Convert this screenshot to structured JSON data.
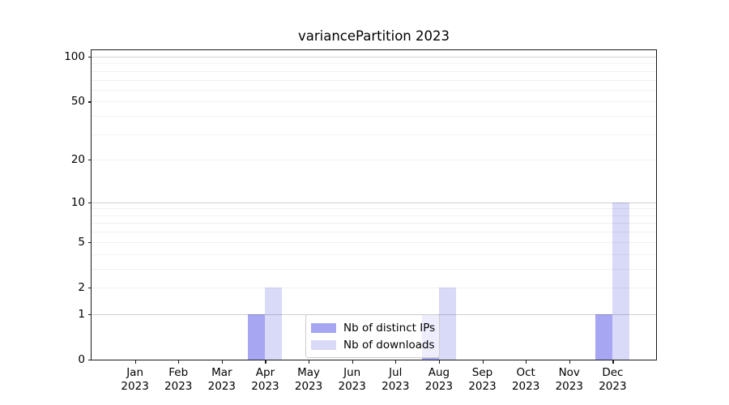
{
  "chart_data": {
    "type": "bar",
    "title": "variancePartition 2023",
    "year_label": "2023",
    "categories": [
      "Jan",
      "Feb",
      "Mar",
      "Apr",
      "May",
      "Jun",
      "Jul",
      "Aug",
      "Sep",
      "Oct",
      "Nov",
      "Dec"
    ],
    "series": [
      {
        "name": "Nb of distinct IPs",
        "color": "#a6a6f2",
        "values": [
          0,
          0,
          0,
          1,
          0,
          0,
          0,
          1,
          0,
          0,
          0,
          1
        ]
      },
      {
        "name": "Nb of downloads",
        "color": "#d9d9f8",
        "values": [
          0,
          0,
          0,
          2,
          0,
          0,
          0,
          2,
          0,
          0,
          0,
          10
        ]
      }
    ],
    "yticks": [
      0,
      1,
      2,
      5,
      10,
      20,
      50,
      100
    ],
    "ylim": [
      0,
      110
    ],
    "scale": "log1p",
    "grid": true,
    "grid_minor_values": [
      2,
      3,
      4,
      5,
      6,
      7,
      8,
      9,
      20,
      30,
      40,
      50,
      60,
      70,
      80,
      90
    ],
    "grid_major_values": [
      1,
      10,
      100
    ],
    "legend_position": "lower center"
  }
}
